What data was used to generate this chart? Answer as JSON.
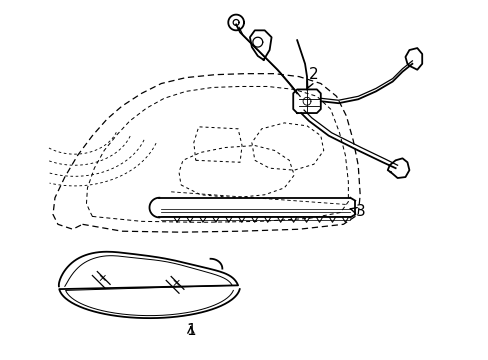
{
  "background_color": "#ffffff",
  "line_color": "#000000",
  "label_1": "1",
  "label_2": "2",
  "label_3": "3",
  "figsize": [
    4.89,
    3.6
  ],
  "dpi": 100
}
